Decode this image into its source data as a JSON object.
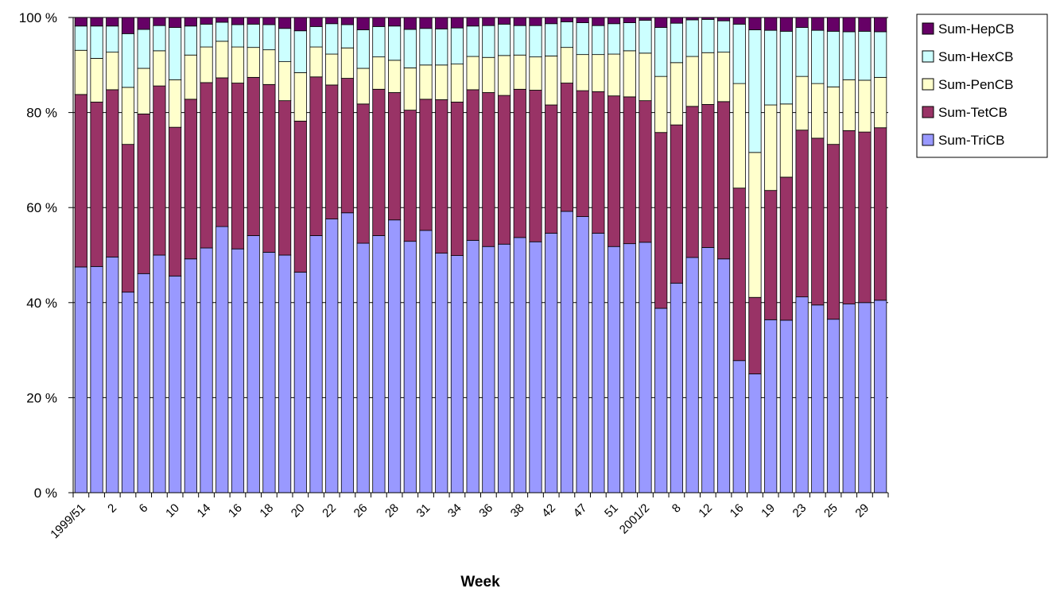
{
  "chart_data": {
    "type": "bar",
    "stacked": true,
    "percent": true,
    "title": "",
    "xlabel": "Week",
    "ylabel": "",
    "ylim": [
      0,
      100
    ],
    "yticks": [
      "0 %",
      "20 %",
      "40 %",
      "60 %",
      "80 %",
      "100 %"
    ],
    "grid": true,
    "legend_position": "right",
    "categories": [
      "1999/51",
      "",
      "2",
      "",
      "6",
      "",
      "10",
      "",
      "14",
      "",
      "16",
      "",
      "18",
      "",
      "20",
      "",
      "22",
      "",
      "26",
      "",
      "28",
      "",
      "31",
      "",
      "34",
      "",
      "36",
      "",
      "38",
      "",
      "42",
      "",
      "47",
      "",
      "51",
      "",
      "2001/2",
      "",
      "8",
      "",
      "12",
      "",
      "16",
      "",
      "19",
      "",
      "23",
      "",
      "25",
      "",
      "29",
      ""
    ],
    "series": [
      {
        "name": "Sum-TriCB",
        "color": "#9999ff",
        "values": [
          47.5,
          47.6,
          49.6,
          42.2,
          46.1,
          50.0,
          45.6,
          49.2,
          51.5,
          56.0,
          51.3,
          54.1,
          50.6,
          50.0,
          46.4,
          54.1,
          57.6,
          58.9,
          52.5,
          54.1,
          57.4,
          52.9,
          55.2,
          50.4,
          49.9,
          53.1,
          51.8,
          52.3,
          53.7,
          52.8,
          54.6,
          59.2,
          58.1,
          54.6,
          51.8,
          52.4,
          52.7,
          38.8,
          44.1,
          49.5,
          51.6,
          49.2,
          27.8,
          25.0,
          36.4,
          36.3,
          41.2,
          39.5,
          36.5,
          39.7,
          40.0,
          40.5
        ]
      },
      {
        "name": "Sum-TetCB",
        "color": "#993366",
        "values": [
          36.3,
          34.6,
          35.2,
          31.1,
          33.6,
          35.6,
          31.3,
          33.6,
          34.8,
          31.3,
          34.9,
          33.3,
          35.3,
          32.5,
          31.8,
          33.4,
          28.2,
          28.3,
          29.3,
          30.8,
          26.8,
          27.6,
          27.6,
          32.3,
          32.3,
          31.7,
          32.4,
          31.3,
          31.2,
          31.9,
          27.0,
          27.0,
          26.5,
          29.8,
          31.7,
          30.9,
          29.8,
          37.0,
          33.3,
          31.8,
          30.1,
          33.1,
          36.3,
          16.1,
          27.2,
          30.1,
          35.1,
          35.1,
          36.8,
          36.5,
          35.9,
          36.3
        ]
      },
      {
        "name": "Sum-PenCB",
        "color": "#ffffcc",
        "values": [
          9.3,
          9.2,
          7.9,
          12.0,
          9.6,
          7.4,
          10.0,
          9.3,
          7.5,
          7.7,
          7.6,
          6.3,
          7.3,
          8.2,
          10.2,
          6.3,
          6.5,
          6.4,
          7.5,
          6.8,
          6.8,
          8.9,
          7.2,
          7.3,
          8.0,
          7.0,
          7.4,
          8.4,
          7.2,
          7.0,
          10.3,
          7.5,
          7.6,
          7.8,
          8.8,
          9.7,
          10.0,
          11.8,
          13.1,
          10.5,
          10.9,
          10.4,
          22.0,
          30.5,
          18.0,
          15.4,
          11.3,
          11.5,
          12.1,
          10.7,
          10.9,
          10.6
        ]
      },
      {
        "name": "Sum-HexCB",
        "color": "#ccffff",
        "values": [
          5.1,
          6.8,
          5.5,
          11.3,
          8.2,
          5.3,
          11.0,
          6.1,
          4.8,
          4.0,
          4.7,
          4.9,
          5.3,
          7.0,
          8.8,
          4.3,
          6.4,
          4.9,
          8.1,
          6.4,
          7.2,
          8.1,
          7.7,
          7.6,
          7.6,
          6.4,
          6.7,
          6.6,
          6.2,
          6.6,
          6.8,
          5.4,
          6.7,
          6.1,
          6.4,
          5.9,
          6.9,
          10.3,
          8.3,
          7.7,
          7.0,
          6.6,
          12.5,
          25.8,
          15.7,
          15.3,
          10.3,
          11.2,
          11.7,
          10.1,
          10.3,
          9.6
        ]
      },
      {
        "name": "Sum-HepCB",
        "color": "#660066",
        "values": [
          1.8,
          1.8,
          1.8,
          3.4,
          2.5,
          1.7,
          2.1,
          1.8,
          1.4,
          1.0,
          1.5,
          1.4,
          1.5,
          2.3,
          2.8,
          1.9,
          1.3,
          1.5,
          2.6,
          1.9,
          1.8,
          2.5,
          2.3,
          2.4,
          2.2,
          1.8,
          1.7,
          1.4,
          1.7,
          1.7,
          1.3,
          0.9,
          1.1,
          1.7,
          1.3,
          1.1,
          0.6,
          2.1,
          1.2,
          0.5,
          0.4,
          0.7,
          1.4,
          2.6,
          2.7,
          2.9,
          2.1,
          2.7,
          2.9,
          3.0,
          2.9,
          3.0
        ]
      }
    ]
  }
}
